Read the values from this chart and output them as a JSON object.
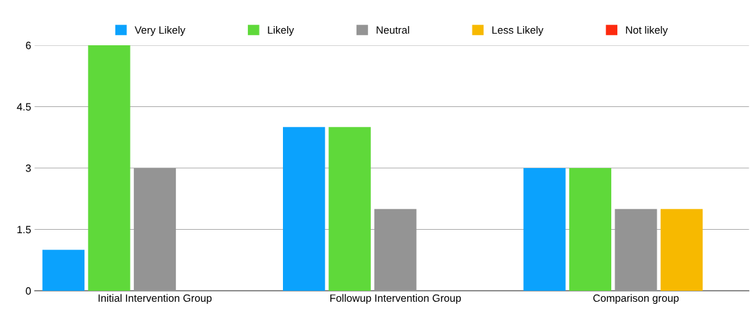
{
  "chart_data": {
    "type": "bar",
    "categories": [
      "Initial Intervention Group",
      "Followup Intervention Group",
      "Comparison group"
    ],
    "series": [
      {
        "name": "Very Likely",
        "color": "#0ba2fd",
        "values": [
          1,
          4,
          3
        ]
      },
      {
        "name": "Likely",
        "color": "#5fd93a",
        "values": [
          6,
          4,
          3
        ]
      },
      {
        "name": "Neutral",
        "color": "#949494",
        "values": [
          3,
          2,
          2
        ]
      },
      {
        "name": "Less Likely",
        "color": "#f7b900",
        "values": [
          0,
          0,
          2
        ]
      },
      {
        "name": "Not likely",
        "color": "#fd2a0f",
        "values": [
          0,
          0,
          0
        ]
      }
    ],
    "ylim": [
      0,
      6
    ],
    "yticks": [
      0,
      1.5,
      3,
      4.5,
      6
    ],
    "grid": "y",
    "legend": "top"
  }
}
